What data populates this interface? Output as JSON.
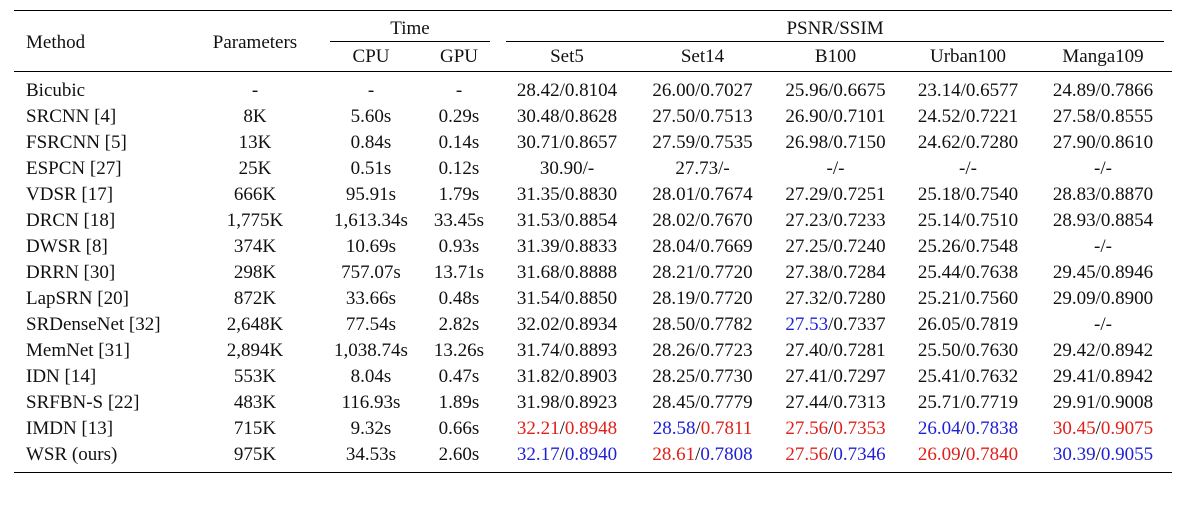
{
  "header": {
    "method": "Method",
    "parameters": "Parameters",
    "time": "Time",
    "cpu": "CPU",
    "gpu": "GPU",
    "psnr_ssim": "PSNR/SSIM",
    "datasets": [
      "Set5",
      "Set14",
      "B100",
      "Urban100",
      "Manga109"
    ]
  },
  "colors": {
    "red": "#e0201a",
    "blue": "#1f1fd6"
  },
  "rows": [
    {
      "method": "Bicubic",
      "params": "-",
      "cpu": "-",
      "gpu": "-",
      "scores": [
        {
          "psnr": "28.42",
          "ssim": "0.8104"
        },
        {
          "psnr": "26.00",
          "ssim": "0.7027"
        },
        {
          "psnr": "25.96",
          "ssim": "0.6675"
        },
        {
          "psnr": "23.14",
          "ssim": "0.6577"
        },
        {
          "psnr": "24.89",
          "ssim": "0.7866"
        }
      ]
    },
    {
      "method": "SRCNN [4]",
      "params": "8K",
      "cpu": "5.60s",
      "gpu": "0.29s",
      "scores": [
        {
          "psnr": "30.48",
          "ssim": "0.8628"
        },
        {
          "psnr": "27.50",
          "ssim": "0.7513"
        },
        {
          "psnr": "26.90",
          "ssim": "0.7101"
        },
        {
          "psnr": "24.52",
          "ssim": "0.7221"
        },
        {
          "psnr": "27.58",
          "ssim": "0.8555"
        }
      ]
    },
    {
      "method": "FSRCNN [5]",
      "params": "13K",
      "cpu": "0.84s",
      "gpu": "0.14s",
      "scores": [
        {
          "psnr": "30.71",
          "ssim": "0.8657"
        },
        {
          "psnr": "27.59",
          "ssim": "0.7535"
        },
        {
          "psnr": "26.98",
          "ssim": "0.7150"
        },
        {
          "psnr": "24.62",
          "ssim": "0.7280"
        },
        {
          "psnr": "27.90",
          "ssim": "0.8610"
        }
      ]
    },
    {
      "method": "ESPCN [27]",
      "params": "25K",
      "cpu": "0.51s",
      "gpu": "0.12s",
      "scores": [
        {
          "psnr": "30.90",
          "ssim": "-"
        },
        {
          "psnr": "27.73",
          "ssim": "-"
        },
        {
          "psnr": "-",
          "ssim": "-"
        },
        {
          "psnr": "-",
          "ssim": "-"
        },
        {
          "psnr": "-",
          "ssim": "-"
        }
      ]
    },
    {
      "method": "VDSR [17]",
      "params": "666K",
      "cpu": "95.91s",
      "gpu": "1.79s",
      "scores": [
        {
          "psnr": "31.35",
          "ssim": "0.8830"
        },
        {
          "psnr": "28.01",
          "ssim": "0.7674"
        },
        {
          "psnr": "27.29",
          "ssim": "0.7251"
        },
        {
          "psnr": "25.18",
          "ssim": "0.7540"
        },
        {
          "psnr": "28.83",
          "ssim": "0.8870"
        }
      ]
    },
    {
      "method": "DRCN [18]",
      "params": "1,775K",
      "cpu": "1,613.34s",
      "gpu": "33.45s",
      "scores": [
        {
          "psnr": "31.53",
          "ssim": "0.8854"
        },
        {
          "psnr": "28.02",
          "ssim": "0.7670"
        },
        {
          "psnr": "27.23",
          "ssim": "0.7233"
        },
        {
          "psnr": "25.14",
          "ssim": "0.7510"
        },
        {
          "psnr": "28.93",
          "ssim": "0.8854"
        }
      ]
    },
    {
      "method": "DWSR [8]",
      "params": "374K",
      "cpu": "10.69s",
      "gpu": "0.93s",
      "scores": [
        {
          "psnr": "31.39",
          "ssim": "0.8833"
        },
        {
          "psnr": "28.04",
          "ssim": "0.7669"
        },
        {
          "psnr": "27.25",
          "ssim": "0.7240"
        },
        {
          "psnr": "25.26",
          "ssim": "0.7548"
        },
        {
          "psnr": "-",
          "ssim": "-"
        }
      ]
    },
    {
      "method": "DRRN [30]",
      "params": "298K",
      "cpu": "757.07s",
      "gpu": "13.71s",
      "scores": [
        {
          "psnr": "31.68",
          "ssim": "0.8888"
        },
        {
          "psnr": "28.21",
          "ssim": "0.7720"
        },
        {
          "psnr": "27.38",
          "ssim": "0.7284"
        },
        {
          "psnr": "25.44",
          "ssim": "0.7638"
        },
        {
          "psnr": "29.45",
          "ssim": "0.8946"
        }
      ]
    },
    {
      "method": "LapSRN [20]",
      "params": "872K",
      "cpu": "33.66s",
      "gpu": "0.48s",
      "scores": [
        {
          "psnr": "31.54",
          "ssim": "0.8850"
        },
        {
          "psnr": "28.19",
          "ssim": "0.7720"
        },
        {
          "psnr": "27.32",
          "ssim": "0.7280"
        },
        {
          "psnr": "25.21",
          "ssim": "0.7560"
        },
        {
          "psnr": "29.09",
          "ssim": "0.8900"
        }
      ]
    },
    {
      "method": "SRDenseNet [32]",
      "params": "2,648K",
      "cpu": "77.54s",
      "gpu": "2.82s",
      "scores": [
        {
          "psnr": "32.02",
          "ssim": "0.8934"
        },
        {
          "psnr": "28.50",
          "ssim": "0.7782"
        },
        {
          "psnr": "27.53",
          "ssim": "0.7337",
          "pc": "blue"
        },
        {
          "psnr": "26.05",
          "ssim": "0.7819"
        },
        {
          "psnr": "-",
          "ssim": "-"
        }
      ]
    },
    {
      "method": "MemNet [31]",
      "params": "2,894K",
      "cpu": "1,038.74s",
      "gpu": "13.26s",
      "scores": [
        {
          "psnr": "31.74",
          "ssim": "0.8893"
        },
        {
          "psnr": "28.26",
          "ssim": "0.7723"
        },
        {
          "psnr": "27.40",
          "ssim": "0.7281"
        },
        {
          "psnr": "25.50",
          "ssim": "0.7630"
        },
        {
          "psnr": "29.42",
          "ssim": "0.8942"
        }
      ]
    },
    {
      "method": "IDN [14]",
      "params": "553K",
      "cpu": "8.04s",
      "gpu": "0.47s",
      "scores": [
        {
          "psnr": "31.82",
          "ssim": "0.8903"
        },
        {
          "psnr": "28.25",
          "ssim": "0.7730"
        },
        {
          "psnr": "27.41",
          "ssim": "0.7297"
        },
        {
          "psnr": "25.41",
          "ssim": "0.7632"
        },
        {
          "psnr": "29.41",
          "ssim": "0.8942"
        }
      ]
    },
    {
      "method": "SRFBN-S [22]",
      "params": "483K",
      "cpu": "116.93s",
      "gpu": "1.89s",
      "scores": [
        {
          "psnr": "31.98",
          "ssim": "0.8923"
        },
        {
          "psnr": "28.45",
          "ssim": "0.7779"
        },
        {
          "psnr": "27.44",
          "ssim": "0.7313"
        },
        {
          "psnr": "25.71",
          "ssim": "0.7719"
        },
        {
          "psnr": "29.91",
          "ssim": "0.9008"
        }
      ]
    },
    {
      "method": "IMDN [13]",
      "params": "715K",
      "cpu": "9.32s",
      "gpu": "0.66s",
      "scores": [
        {
          "psnr": "32.21",
          "ssim": "0.8948",
          "pc": "red",
          "sc": "red"
        },
        {
          "psnr": "28.58",
          "ssim": "0.7811",
          "pc": "blue",
          "sc": "red"
        },
        {
          "psnr": "27.56",
          "ssim": "0.7353",
          "pc": "red",
          "sc": "red"
        },
        {
          "psnr": "26.04",
          "ssim": "0.7838",
          "pc": "blue",
          "sc": "blue"
        },
        {
          "psnr": "30.45",
          "ssim": "0.9075",
          "pc": "red",
          "sc": "red"
        }
      ]
    },
    {
      "method": "WSR (ours)",
      "params": "975K",
      "cpu": "34.53s",
      "gpu": "2.60s",
      "bold": true,
      "scores": [
        {
          "psnr": "32.17",
          "ssim": "0.8940",
          "pc": "blue",
          "sc": "blue"
        },
        {
          "psnr": "28.61",
          "ssim": "0.7808",
          "pc": "red",
          "sc": "blue"
        },
        {
          "psnr": "27.56",
          "ssim": "0.7346",
          "pc": "red",
          "sc": "blue"
        },
        {
          "psnr": "26.09",
          "ssim": "0.7840",
          "pc": "red",
          "sc": "red"
        },
        {
          "psnr": "30.39",
          "ssim": "0.9055",
          "pc": "blue",
          "sc": "blue"
        }
      ]
    }
  ]
}
